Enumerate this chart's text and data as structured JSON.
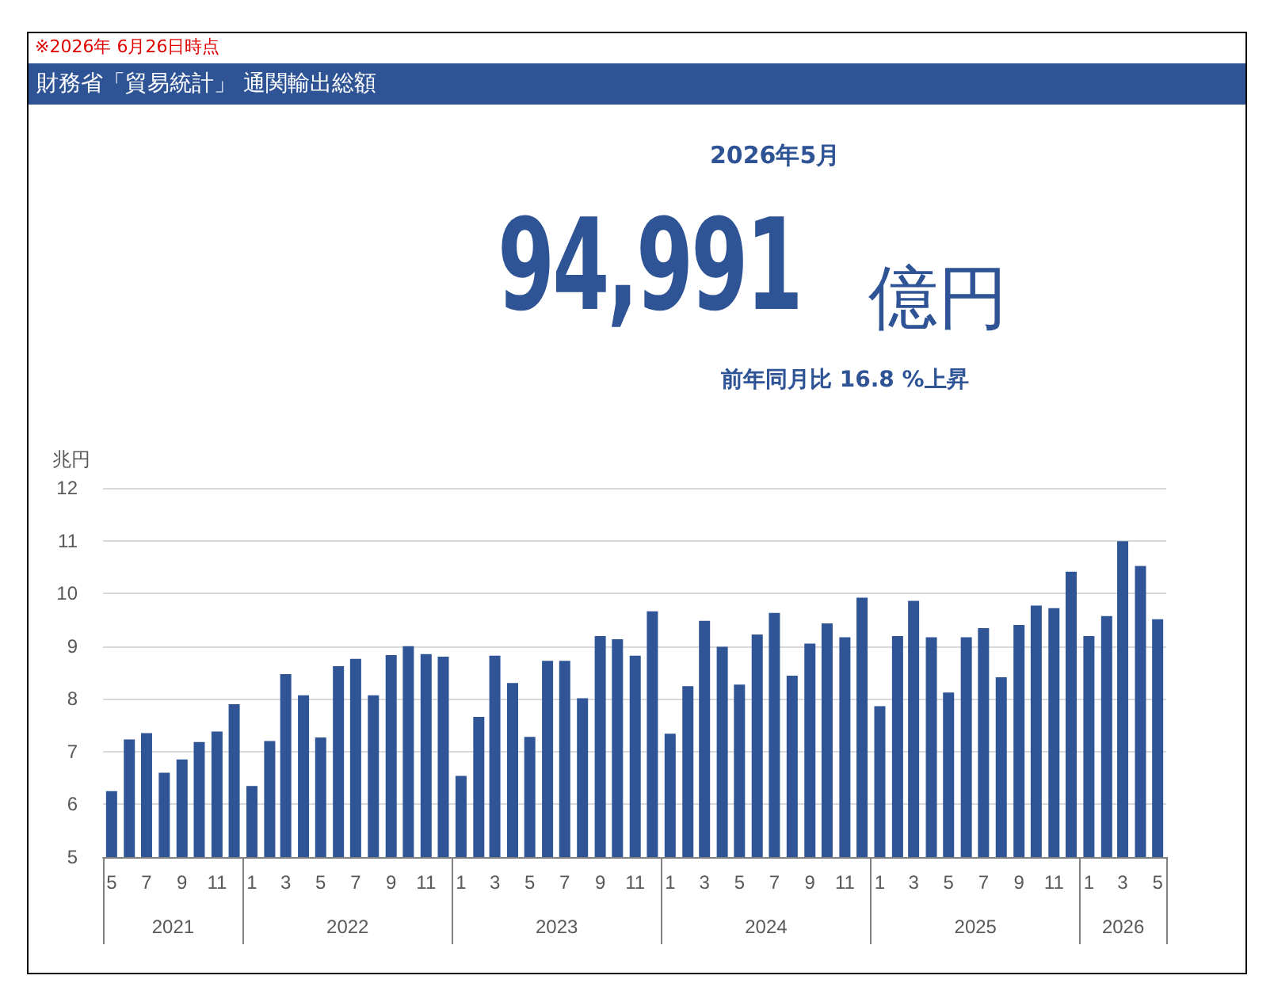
{
  "chart_data": {
    "type": "bar",
    "title": "財務省「貿易統計」 通関輸出総額",
    "subtitle": "※2026年 6月26日時点",
    "ylabel": "兆円",
    "annotations": [
      "2026年5月",
      "94,991",
      "億円",
      "前年同月比  16.8 %上昇",
      "2021",
      "2022",
      "2023",
      "2024",
      "2025",
      "2026"
    ],
    "x": [
      "2021-05",
      "2021-06",
      "2021-07",
      "2021-08",
      "2021-09",
      "2021-10",
      "2021-11",
      "2021-12",
      "2022-01",
      "2022-02",
      "2022-03",
      "2022-04",
      "2022-05",
      "2022-06",
      "2022-07",
      "2022-08",
      "2022-09",
      "2022-10",
      "2022-11",
      "2022-12",
      "2023-01",
      "2023-02",
      "2023-03",
      "2023-04",
      "2023-05",
      "2023-06",
      "2023-07",
      "2023-08",
      "2023-09",
      "2023-10",
      "2023-11",
      "2023-12",
      "2024-01",
      "2024-02",
      "2024-03",
      "2024-04",
      "2024-05",
      "2024-06",
      "2024-07",
      "2024-08",
      "2024-09",
      "2024-10",
      "2024-11",
      "2024-12",
      "2025-01",
      "2025-02",
      "2025-03",
      "2025-04",
      "2025-05",
      "2025-06",
      "2025-07",
      "2025-08",
      "2025-09",
      "2025-10",
      "2025-11",
      "2025-12",
      "2026-01",
      "2026-02",
      "2026-03",
      "2026-04",
      "2026-05"
    ],
    "values": [
      6.25,
      7.23,
      7.35,
      6.6,
      6.85,
      7.18,
      7.38,
      7.9,
      6.35,
      7.2,
      8.47,
      8.07,
      7.27,
      8.62,
      8.76,
      8.07,
      8.83,
      9.0,
      8.85,
      8.8,
      6.54,
      7.66,
      8.82,
      8.3,
      7.28,
      8.72,
      8.72,
      8.01,
      9.19,
      9.13,
      8.82,
      9.66,
      7.34,
      8.24,
      9.48,
      8.99,
      8.27,
      9.22,
      9.63,
      8.44,
      9.05,
      9.43,
      9.17,
      9.92,
      7.86,
      9.19,
      9.86,
      9.17,
      8.12,
      9.17,
      9.34,
      8.41,
      9.4,
      9.77,
      9.72,
      10.41,
      9.19,
      9.57,
      10.99,
      10.52,
      9.51
    ],
    "xticks": [
      {
        "value": "2021-05",
        "label": "5"
      },
      {
        "value": "2021-07",
        "label": "7"
      },
      {
        "value": "2021-09",
        "label": "9"
      },
      {
        "value": "2021-11",
        "label": "11"
      },
      {
        "value": "2022-01",
        "label": "1"
      },
      {
        "value": "2022-03",
        "label": "3"
      },
      {
        "value": "2022-05",
        "label": "5"
      },
      {
        "value": "2022-07",
        "label": "7"
      },
      {
        "value": "2022-09",
        "label": "9"
      },
      {
        "value": "2022-11",
        "label": "11"
      },
      {
        "value": "2023-01",
        "label": "1"
      },
      {
        "value": "2023-03",
        "label": "3"
      },
      {
        "value": "2023-05",
        "label": "5"
      },
      {
        "value": "2023-07",
        "label": "7"
      },
      {
        "value": "2023-09",
        "label": "9"
      },
      {
        "value": "2023-11",
        "label": "11"
      },
      {
        "value": "2024-01",
        "label": "1"
      },
      {
        "value": "2024-03",
        "label": "3"
      },
      {
        "value": "2024-05",
        "label": "5"
      },
      {
        "value": "2024-07",
        "label": "7"
      },
      {
        "value": "2024-09",
        "label": "9"
      },
      {
        "value": "2024-11",
        "label": "11"
      },
      {
        "value": "2025-01",
        "label": "1"
      },
      {
        "value": "2025-03",
        "label": "3"
      },
      {
        "value": "2025-05",
        "label": "5"
      },
      {
        "value": "2025-07",
        "label": "7"
      },
      {
        "value": "2025-09",
        "label": "9"
      },
      {
        "value": "2025-11",
        "label": "11"
      },
      {
        "value": "2026-01",
        "label": "1"
      },
      {
        "value": "2026-03",
        "label": "3"
      },
      {
        "value": "2026-05",
        "label": "5"
      }
    ],
    "color": "#2f5597",
    "ylim": [
      5,
      12
    ],
    "yticks": [
      5,
      6,
      7,
      8,
      9,
      10,
      11,
      12
    ],
    "grid": "y",
    "xlim": [
      "2021-04-16",
      "2026-05-16"
    ]
  }
}
